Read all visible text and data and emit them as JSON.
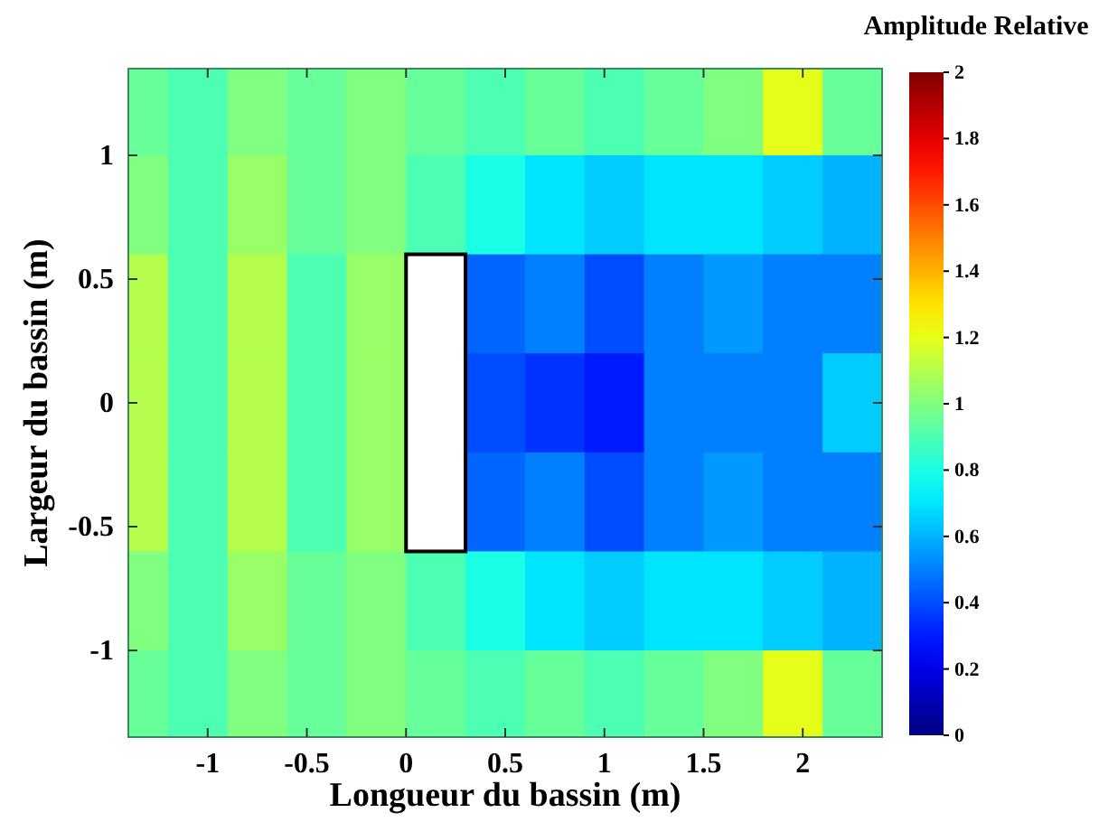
{
  "chart_data": {
    "type": "heatmap",
    "xlabel": "Longueur du bassin (m)",
    "ylabel": "Largeur du bassin (m)",
    "clabel": "Amplitude Relative",
    "x": [
      -1.35,
      -1.05,
      -0.75,
      -0.45,
      -0.15,
      0.15,
      0.45,
      0.75,
      1.05,
      1.35,
      1.65,
      1.95,
      2.25
    ],
    "y": [
      1.2,
      0.8,
      0.4,
      0,
      -0.4,
      -0.8,
      -1.2
    ],
    "xlim": [
      -1.4,
      2.4
    ],
    "ylim": [
      -1.35,
      1.35
    ],
    "xticks": [
      -1,
      -0.5,
      0,
      0.5,
      1,
      1.5,
      2
    ],
    "yticks": [
      -1,
      -0.5,
      0,
      0.5,
      1
    ],
    "clim": [
      0,
      2
    ],
    "cticks": [
      0,
      0.2,
      0.4,
      0.6,
      0.8,
      1,
      1.2,
      1.4,
      1.6,
      1.8,
      2
    ],
    "cells": [
      [
        0.95,
        0.9,
        1.0,
        0.95,
        1.0,
        0.95,
        0.9,
        0.95,
        0.9,
        0.95,
        1.0,
        1.2,
        0.95
      ],
      [
        1.0,
        0.9,
        1.05,
        0.95,
        1.0,
        0.9,
        0.8,
        0.7,
        0.65,
        0.7,
        0.7,
        0.65,
        0.6
      ],
      [
        1.1,
        0.9,
        1.1,
        0.9,
        1.05,
        null,
        0.45,
        0.5,
        0.4,
        0.5,
        0.55,
        0.5,
        0.5
      ],
      [
        1.1,
        0.9,
        1.1,
        0.9,
        1.05,
        null,
        0.4,
        0.35,
        0.3,
        0.5,
        0.5,
        0.5,
        0.65
      ],
      [
        1.1,
        0.9,
        1.1,
        0.9,
        1.05,
        null,
        0.45,
        0.5,
        0.4,
        0.5,
        0.55,
        0.5,
        0.5
      ],
      [
        1.0,
        0.9,
        1.05,
        0.95,
        1.0,
        0.9,
        0.8,
        0.7,
        0.65,
        0.7,
        0.7,
        0.65,
        0.6
      ],
      [
        0.95,
        0.9,
        1.0,
        0.95,
        1.0,
        0.95,
        0.9,
        0.95,
        0.9,
        0.95,
        1.0,
        1.2,
        0.95
      ]
    ]
  }
}
